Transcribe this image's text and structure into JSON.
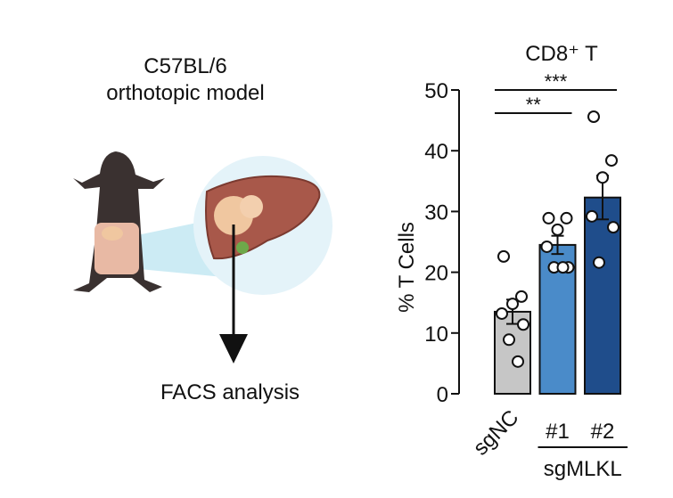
{
  "diagram": {
    "line1": "C57BL/6",
    "line2": "orthotopic model",
    "caption": "FACS analysis"
  },
  "chart_data": {
    "type": "bar",
    "title": "CD8⁺ T",
    "ylabel": "%  T Cells",
    "categories": [
      "sgNC",
      "#1",
      "#2"
    ],
    "group_label": "sgMLKL",
    "values": [
      13.5,
      24.5,
      32.3
    ],
    "errors": [
      2.0,
      1.5,
      3.6
    ],
    "colors": [
      "#c6c6c6",
      "#4a8bc9",
      "#1f4d8b"
    ],
    "points": [
      [
        22.6,
        16.0,
        14.8,
        13.2,
        11.4,
        8.9,
        5.3
      ],
      [
        28.9,
        28.9,
        27.0,
        24.2,
        20.8,
        20.8,
        20.8
      ],
      [
        45.6,
        38.4,
        35.6,
        29.2,
        27.4,
        21.6
      ]
    ],
    "annotations": [
      "**",
      "***"
    ],
    "ylim": [
      0,
      50
    ],
    "yticks": [
      0,
      10,
      20,
      30,
      40,
      50
    ]
  }
}
